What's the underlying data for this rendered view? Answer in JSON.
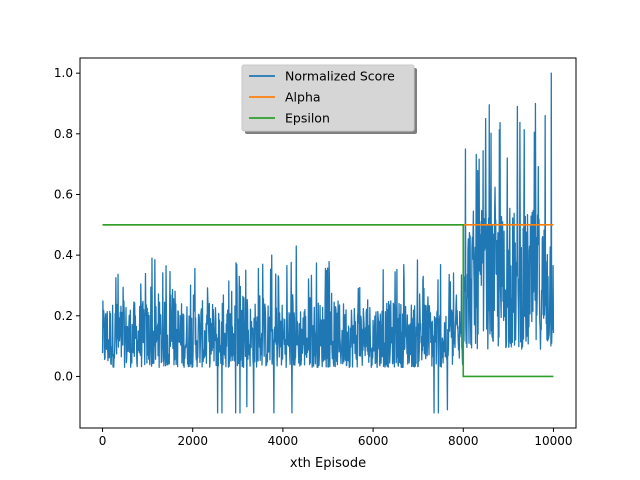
{
  "chart_data": {
    "type": "line",
    "xlabel": "xth Episode",
    "ylabel": "",
    "xlim": [
      -500,
      10500
    ],
    "ylim": [
      -0.17,
      1.05
    ],
    "x_ticks": [
      0,
      2000,
      4000,
      6000,
      8000,
      10000
    ],
    "x_tick_labels": [
      "0",
      "2000",
      "4000",
      "6000",
      "8000",
      "10000"
    ],
    "y_ticks": [
      0.0,
      0.2,
      0.4,
      0.6,
      0.8,
      1.0
    ],
    "y_tick_labels": [
      "0.0",
      "0.2",
      "0.4",
      "0.6",
      "0.8",
      "1.0"
    ],
    "grid": false,
    "legend_position": "top-center",
    "series": [
      {
        "name": "Normalized Score",
        "color": "#1f77b4",
        "style": "noisy",
        "segments": [
          {
            "x_start": 0,
            "x_end": 8000,
            "low": 0.03,
            "high": 0.42,
            "typical_high": 0.25
          },
          {
            "x_start": 8000,
            "x_end": 10000,
            "low": 0.09,
            "high": 1.0,
            "typical_high": 0.55
          }
        ],
        "spikes": [
          {
            "x": 2550,
            "y": -0.12
          },
          {
            "x": 2650,
            "y": -0.12
          },
          {
            "x": 2950,
            "y": -0.12
          },
          {
            "x": 3050,
            "y": -0.12
          },
          {
            "x": 3200,
            "y": -0.1
          },
          {
            "x": 3350,
            "y": -0.12
          },
          {
            "x": 3800,
            "y": -0.12
          },
          {
            "x": 4200,
            "y": -0.12
          },
          {
            "x": 7350,
            "y": -0.12
          },
          {
            "x": 7450,
            "y": -0.12
          },
          {
            "x": 7650,
            "y": -0.11
          },
          {
            "x": 1100,
            "y": 0.39
          },
          {
            "x": 4300,
            "y": 0.43
          },
          {
            "x": 3750,
            "y": 0.4
          },
          {
            "x": 9200,
            "y": 0.89
          },
          {
            "x": 9600,
            "y": 0.9
          },
          {
            "x": 9950,
            "y": 1.0
          },
          {
            "x": 8050,
            "y": 0.75
          },
          {
            "x": 8500,
            "y": 0.85
          }
        ]
      },
      {
        "name": "Alpha",
        "color": "#ff7f0e",
        "x": [
          0,
          10000
        ],
        "y": [
          0.5,
          0.5
        ]
      },
      {
        "name": "Epsilon",
        "color": "#2ca02c",
        "x": [
          0,
          8000,
          8000,
          10000
        ],
        "y": [
          0.5,
          0.5,
          0.0,
          0.0
        ]
      }
    ]
  }
}
